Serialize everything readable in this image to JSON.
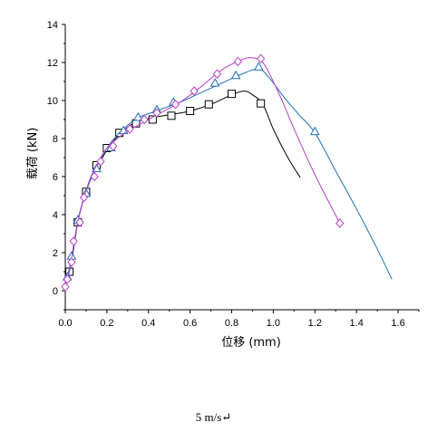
{
  "chart_data": {
    "type": "line",
    "title": "",
    "xlabel": "位移 (mm)",
    "ylabel": "载荷 (kN)",
    "xlim": [
      0.0,
      1.7
    ],
    "ylim": [
      -1,
      14
    ],
    "x_ticks": [
      "0.0",
      "0.2",
      "0.4",
      "0.6",
      "0.8",
      "1.0",
      "1.2",
      "1.4",
      "1.6"
    ],
    "y_ticks": [
      "0",
      "2",
      "4",
      "6",
      "8",
      "10",
      "12",
      "14"
    ],
    "grid": false,
    "legend": "none",
    "series": [
      {
        "marker": "square",
        "color": "#000000",
        "points": [
          [
            0.0,
            0.3
          ],
          [
            0.02,
            1.0
          ],
          [
            0.04,
            2.2
          ],
          [
            0.06,
            3.6
          ],
          [
            0.09,
            4.9
          ],
          [
            0.12,
            5.8
          ],
          [
            0.16,
            6.6
          ],
          [
            0.2,
            7.4
          ],
          [
            0.25,
            8.1
          ],
          [
            0.3,
            8.6
          ],
          [
            0.35,
            8.9
          ],
          [
            0.42,
            9.1
          ],
          [
            0.5,
            9.25
          ],
          [
            0.6,
            9.45
          ],
          [
            0.7,
            9.8
          ],
          [
            0.8,
            10.3
          ],
          [
            0.86,
            10.5
          ],
          [
            0.9,
            10.3
          ],
          [
            0.95,
            9.8
          ],
          [
            1.0,
            8.5
          ],
          [
            1.07,
            7.0
          ],
          [
            1.13,
            5.95
          ]
        ],
        "marked": [
          [
            0.02,
            1.0
          ],
          [
            0.06,
            3.6
          ],
          [
            0.1,
            5.2
          ],
          [
            0.15,
            6.6
          ],
          [
            0.2,
            7.5
          ],
          [
            0.26,
            8.3
          ],
          [
            0.34,
            8.8
          ],
          [
            0.42,
            9.0
          ],
          [
            0.51,
            9.2
          ],
          [
            0.6,
            9.45
          ],
          [
            0.69,
            9.8
          ],
          [
            0.8,
            10.35
          ],
          [
            0.94,
            9.85
          ]
        ]
      },
      {
        "marker": "triangle",
        "color": "#1f6fb5",
        "points": [
          [
            0.0,
            0.4
          ],
          [
            0.02,
            1.2
          ],
          [
            0.04,
            2.3
          ],
          [
            0.06,
            3.7
          ],
          [
            0.09,
            4.9
          ],
          [
            0.12,
            5.8
          ],
          [
            0.16,
            6.7
          ],
          [
            0.2,
            7.5
          ],
          [
            0.25,
            8.2
          ],
          [
            0.3,
            8.7
          ],
          [
            0.35,
            9.1
          ],
          [
            0.45,
            9.5
          ],
          [
            0.55,
            9.9
          ],
          [
            0.65,
            10.4
          ],
          [
            0.75,
            10.9
          ],
          [
            0.85,
            11.4
          ],
          [
            0.93,
            11.65
          ],
          [
            0.98,
            11.2
          ],
          [
            1.05,
            10.2
          ],
          [
            1.12,
            9.3
          ],
          [
            1.2,
            8.3
          ],
          [
            1.3,
            6.3
          ],
          [
            1.4,
            4.3
          ],
          [
            1.5,
            2.2
          ],
          [
            1.57,
            0.6
          ]
        ],
        "marked": [
          [
            0.01,
            0.7
          ],
          [
            0.03,
            1.8
          ],
          [
            0.06,
            3.7
          ],
          [
            0.1,
            5.1
          ],
          [
            0.15,
            6.4
          ],
          [
            0.22,
            7.5
          ],
          [
            0.28,
            8.4
          ],
          [
            0.35,
            9.1
          ],
          [
            0.44,
            9.5
          ],
          [
            0.52,
            9.9
          ],
          [
            0.72,
            10.9
          ],
          [
            0.82,
            11.3
          ],
          [
            0.93,
            11.75
          ],
          [
            1.2,
            8.35
          ]
        ]
      },
      {
        "marker": "diamond",
        "color": "#b640c8",
        "points": [
          [
            0.0,
            0.2
          ],
          [
            0.02,
            1.0
          ],
          [
            0.04,
            2.4
          ],
          [
            0.06,
            3.6
          ],
          [
            0.09,
            4.9
          ],
          [
            0.12,
            5.9
          ],
          [
            0.16,
            6.8
          ],
          [
            0.2,
            7.5
          ],
          [
            0.25,
            8.0
          ],
          [
            0.3,
            8.4
          ],
          [
            0.35,
            8.7
          ],
          [
            0.4,
            9.0
          ],
          [
            0.45,
            9.3
          ],
          [
            0.55,
            9.9
          ],
          [
            0.65,
            10.7
          ],
          [
            0.75,
            11.6
          ],
          [
            0.85,
            12.15
          ],
          [
            0.9,
            12.25
          ],
          [
            0.95,
            12.0
          ],
          [
            1.0,
            11.0
          ],
          [
            1.05,
            9.8
          ],
          [
            1.1,
            8.5
          ],
          [
            1.2,
            6.1
          ],
          [
            1.32,
            3.55
          ]
        ],
        "marked": [
          [
            0.0,
            0.2
          ],
          [
            0.01,
            0.6
          ],
          [
            0.03,
            1.5
          ],
          [
            0.04,
            2.6
          ],
          [
            0.07,
            3.6
          ],
          [
            0.09,
            4.9
          ],
          [
            0.14,
            6.0
          ],
          [
            0.17,
            6.8
          ],
          [
            0.23,
            7.6
          ],
          [
            0.31,
            8.5
          ],
          [
            0.38,
            9.0
          ],
          [
            0.44,
            9.35
          ],
          [
            0.53,
            9.8
          ],
          [
            0.62,
            10.5
          ],
          [
            0.73,
            11.4
          ],
          [
            0.83,
            12.05
          ],
          [
            0.94,
            12.2
          ],
          [
            1.32,
            3.55
          ]
        ]
      }
    ]
  },
  "caption": "5 m/s↵"
}
